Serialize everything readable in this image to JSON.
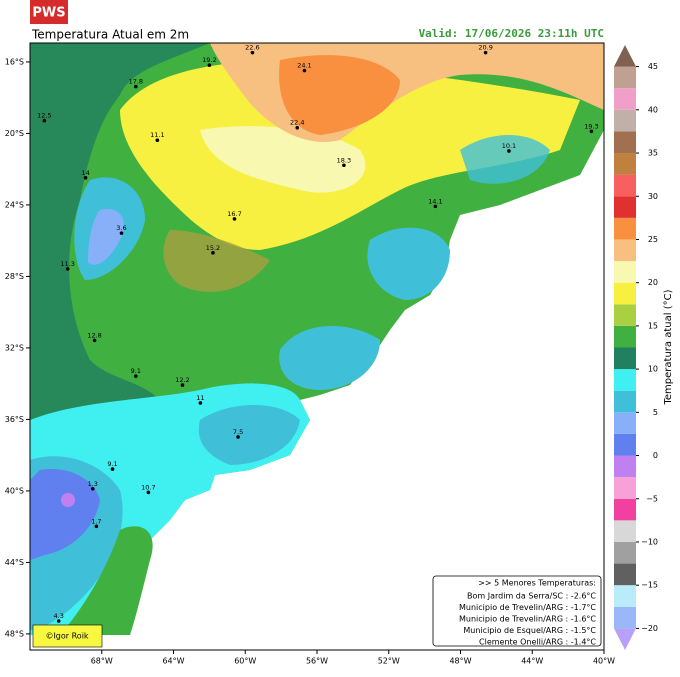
{
  "header": {
    "badge": "PWS",
    "title": "Temperatura Atual em 2m",
    "valid": "Valid: 17/06/2026 23:11h UTC"
  },
  "map": {
    "lonlim": [
      -72,
      -40
    ],
    "latlim": [
      -48.9,
      -14.94
    ],
    "lon_ticks": [
      {
        "value": -68,
        "label": "68°W"
      },
      {
        "value": -64,
        "label": "64°W"
      },
      {
        "value": -60,
        "label": "60°W"
      },
      {
        "value": -56,
        "label": "56°W"
      },
      {
        "value": -52,
        "label": "52°W"
      },
      {
        "value": -48,
        "label": "48°W"
      },
      {
        "value": -44,
        "label": "44°W"
      },
      {
        "value": -40,
        "label": "40°W"
      }
    ],
    "lat_ticks": [
      {
        "value": -16,
        "label": "16°S"
      },
      {
        "value": -20,
        "label": "20°S"
      },
      {
        "value": -24,
        "label": "24°S"
      },
      {
        "value": -28,
        "label": "28°S"
      },
      {
        "value": -32,
        "label": "32°S"
      },
      {
        "value": -36,
        "label": "36°S"
      },
      {
        "value": -40,
        "label": "40°S"
      },
      {
        "value": -44,
        "label": "44°S"
      },
      {
        "value": -48,
        "label": "48°S"
      }
    ],
    "stations": [
      {
        "lon": -59.6,
        "lat": -15.2,
        "value": 22.6
      },
      {
        "lon": -66.1,
        "lat": -17.1,
        "value": 17.8
      },
      {
        "lon": -62.0,
        "lat": -15.9,
        "value": 19.2
      },
      {
        "lon": -56.7,
        "lat": -16.2,
        "value": 24.1
      },
      {
        "lon": -46.6,
        "lat": -15.2,
        "value": 20.9
      },
      {
        "lon": -57.1,
        "lat": -19.4,
        "value": 22.4
      },
      {
        "lon": -71.2,
        "lat": -19.0,
        "value": 12.5
      },
      {
        "lon": -68.9,
        "lat": -22.2,
        "value": 14.0
      },
      {
        "lon": -64.9,
        "lat": -20.1,
        "value": 11.1
      },
      {
        "lon": -60.6,
        "lat": -24.5,
        "value": 16.7
      },
      {
        "lon": -61.8,
        "lat": -26.4,
        "value": 15.2
      },
      {
        "lon": -69.9,
        "lat": -27.3,
        "value": 11.3
      },
      {
        "lon": -66.9,
        "lat": -25.3,
        "value": 3.6
      },
      {
        "lon": -68.4,
        "lat": -31.3,
        "value": 12.8
      },
      {
        "lon": -66.1,
        "lat": -33.3,
        "value": 9.1
      },
      {
        "lon": -63.5,
        "lat": -33.8,
        "value": 12.2
      },
      {
        "lon": -62.5,
        "lat": -34.8,
        "value": 11.0
      },
      {
        "lon": -60.4,
        "lat": -36.7,
        "value": 7.5
      },
      {
        "lon": -67.4,
        "lat": -38.5,
        "value": 9.1
      },
      {
        "lon": -68.5,
        "lat": -39.6,
        "value": 1.3
      },
      {
        "lon": -68.3,
        "lat": -41.7,
        "value": 1.7
      },
      {
        "lon": -65.4,
        "lat": -39.8,
        "value": 10.7
      },
      {
        "lon": -70.4,
        "lat": -47.0,
        "value": 4.3
      },
      {
        "lon": -40.7,
        "lat": -19.6,
        "value": 19.3
      },
      {
        "lon": -45.3,
        "lat": -20.7,
        "value": 10.1
      },
      {
        "lon": -54.5,
        "lat": -21.5,
        "value": 18.3
      },
      {
        "lon": -49.4,
        "lat": -23.8,
        "value": 14.1
      }
    ]
  },
  "colorbar": {
    "label": "Temperatura atual (°C)",
    "lim": [
      -22.5,
      47.5
    ],
    "ticks": [
      {
        "value": -20,
        "label": "−20"
      },
      {
        "value": -15,
        "label": "−15"
      },
      {
        "value": -10,
        "label": "−10"
      },
      {
        "value": -5,
        "label": "−5"
      },
      0,
      5,
      10,
      15,
      20,
      25,
      30,
      35,
      40,
      45
    ],
    "bounds": [
      -22.5,
      -20,
      -17.5,
      -15,
      -12.5,
      -10,
      -7.5,
      -5,
      -2.5,
      0,
      2.5,
      5,
      7.5,
      10,
      12.5,
      15,
      17.5,
      20,
      22.5,
      25,
      27.5,
      30,
      32.5,
      35,
      37.5,
      40,
      42.5,
      45,
      47.5
    ],
    "colors": [
      "#b8a0f8",
      "#9ab8f8",
      "#b8ecf8",
      "#606060",
      "#a0a0a0",
      "#d8d8d8",
      "#f040a0",
      "#f8a0d8",
      "#c080f0",
      "#6080f0",
      "#88b0f8",
      "#40c0d8",
      "#40f0f0",
      "#208060",
      "#40b040",
      "#a8d040",
      "#f8f040",
      "#f8f8b0",
      "#f8c080",
      "#f89040",
      "#e03030",
      "#f86060",
      "#c08040",
      "#a07050",
      "#c0b0a8",
      "#f0a0c8",
      "#c0a090",
      "#806050"
    ]
  },
  "info_box": {
    "title": ">> 5 Menores Temperaturas:",
    "lines": [
      "Bom Jardim da Serra/SC : -2.6°C",
      "Municipio de Trevelin/ARG : -1.7°C",
      "Municipio de Trevelin/ARG : -1.6°C",
      "Municipio de Esquel/ARG : -1.5°C",
      "Clemente Onelli/ARG : -1.4°C"
    ]
  },
  "credit": "©Igor Roik"
}
